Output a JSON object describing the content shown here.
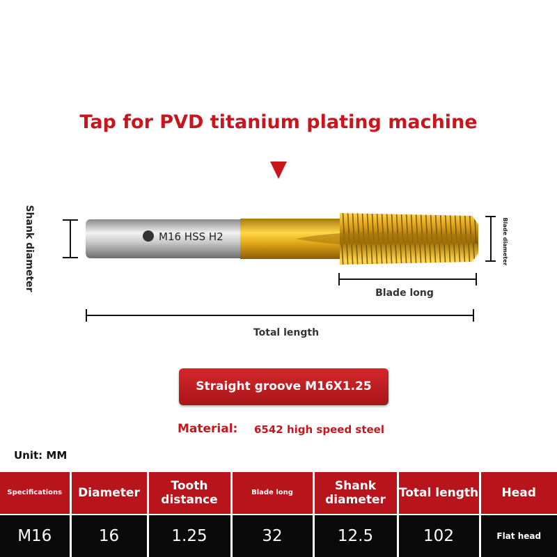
{
  "title": "Tap for PVD titanium plating machine",
  "diagram": {
    "shank_diameter": "Shank diameter",
    "marking": "M16 HSS H2",
    "blade_diameter": "Blade diameter",
    "blade_long": "Blade long",
    "total_length": "Total length"
  },
  "button": "Straight groove M16X1.25",
  "material": {
    "label": "Material:",
    "value": "6542 high speed steel"
  },
  "unit": "Unit: MM",
  "table": {
    "header": [
      "Specifications",
      "Diameter",
      "Tooth distance",
      "Blade long",
      "Shank diameter",
      "Total length",
      "Head"
    ],
    "rows": [
      [
        "M16",
        "16",
        "1.25",
        "32",
        "12.5",
        "102",
        "Flat head"
      ]
    ]
  }
}
